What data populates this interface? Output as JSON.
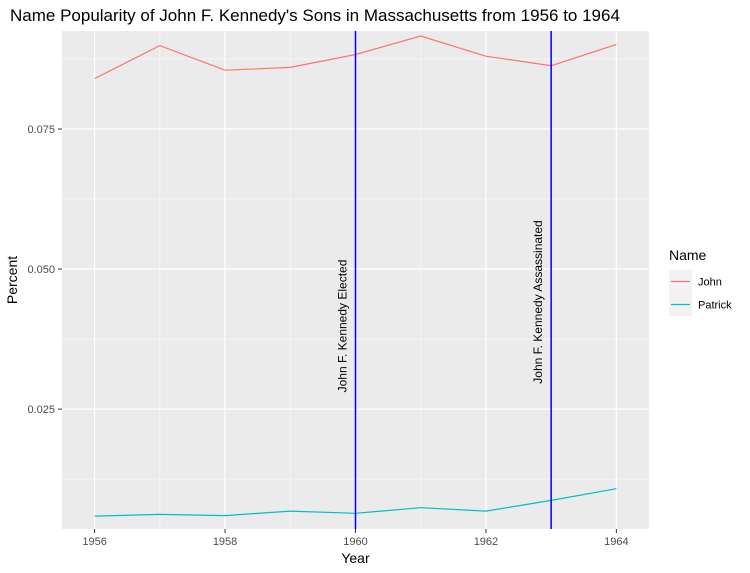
{
  "chart_data": {
    "type": "line",
    "title": "Name Popularity of John F. Kennedy's Sons in Massachusetts from 1956 to 1964",
    "xlabel": "Year",
    "ylabel": "Percent",
    "x": [
      1956,
      1957,
      1958,
      1959,
      1960,
      1961,
      1962,
      1963,
      1964
    ],
    "xlim": [
      1955.5,
      1964.5
    ],
    "ylim": [
      0.0036,
      0.0925
    ],
    "x_ticks": [
      1956,
      1958,
      1960,
      1962,
      1964
    ],
    "x_tick_labels": [
      "1956",
      "1958",
      "1960",
      "1962",
      "1964"
    ],
    "y_ticks": [
      0.025,
      0.05,
      0.075
    ],
    "y_tick_labels": [
      "0.025",
      "0.050",
      "0.075"
    ],
    "grid": true,
    "legend": {
      "title": "Name",
      "position": "right"
    },
    "series": [
      {
        "name": "John",
        "color": "#F8766D",
        "values": [
          0.084,
          0.0899,
          0.0855,
          0.086,
          0.0883,
          0.0916,
          0.088,
          0.0863,
          0.0901
        ]
      },
      {
        "name": "Patrick",
        "color": "#00BFC4",
        "values": [
          0.0059,
          0.0062,
          0.006,
          0.0068,
          0.0064,
          0.0074,
          0.0068,
          0.0087,
          0.0108
        ]
      }
    ],
    "vlines": [
      {
        "x": 1960,
        "label": "John F. Kennedy Elected",
        "color": "#0000FF"
      },
      {
        "x": 1963,
        "label": "John F. Kennedy Assassinated",
        "color": "#0000FF"
      }
    ]
  }
}
